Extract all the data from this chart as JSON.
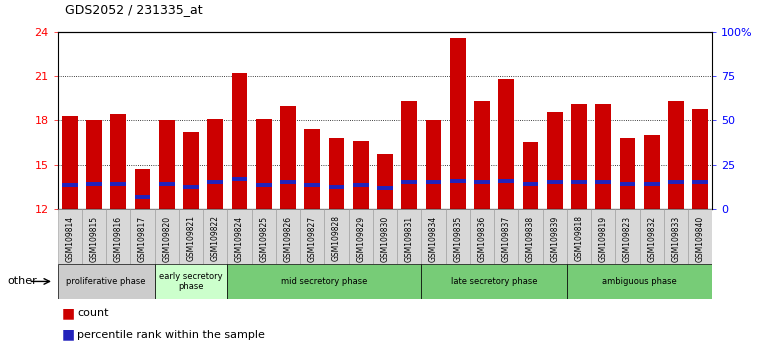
{
  "title": "GDS2052 / 231335_at",
  "samples": [
    "GSM109814",
    "GSM109815",
    "GSM109816",
    "GSM109817",
    "GSM109820",
    "GSM109821",
    "GSM109822",
    "GSM109824",
    "GSM109825",
    "GSM109826",
    "GSM109827",
    "GSM109828",
    "GSM109829",
    "GSM109830",
    "GSM109831",
    "GSM109834",
    "GSM109835",
    "GSM109836",
    "GSM109837",
    "GSM109838",
    "GSM109839",
    "GSM109818",
    "GSM109819",
    "GSM109823",
    "GSM109832",
    "GSM109833",
    "GSM109840"
  ],
  "counts": [
    18.3,
    18.0,
    18.4,
    14.7,
    18.0,
    17.2,
    18.1,
    21.2,
    18.1,
    19.0,
    17.4,
    16.8,
    16.6,
    15.7,
    19.3,
    18.0,
    23.6,
    19.3,
    20.8,
    16.5,
    18.6,
    19.1,
    19.1,
    16.8,
    17.0,
    19.3,
    18.8
  ],
  "percentile_pos": [
    13.6,
    13.7,
    13.7,
    12.8,
    13.7,
    13.5,
    13.8,
    14.0,
    13.6,
    13.8,
    13.6,
    13.5,
    13.6,
    13.4,
    13.8,
    13.8,
    13.9,
    13.8,
    13.9,
    13.7,
    13.8,
    13.8,
    13.8,
    13.7,
    13.7,
    13.8,
    13.8
  ],
  "ymin": 12,
  "ymax": 24,
  "yticks": [
    12,
    15,
    18,
    21,
    24
  ],
  "y2ticks_pct": [
    0,
    25,
    50,
    75,
    100
  ],
  "y2labels": [
    "0",
    "25",
    "50",
    "75",
    "100%"
  ],
  "bar_color": "#cc0000",
  "blue_color": "#2222bb",
  "bar_width": 0.65,
  "phase_data": [
    {
      "label": "proliferative phase",
      "start": 0,
      "end": 4,
      "color": "#cccccc"
    },
    {
      "label": "early secretory\nphase",
      "start": 4,
      "end": 7,
      "color": "#ccffcc"
    },
    {
      "label": "mid secretory phase",
      "start": 7,
      "end": 15,
      "color": "#77cc77"
    },
    {
      "label": "late secretory phase",
      "start": 15,
      "end": 21,
      "color": "#77cc77"
    },
    {
      "label": "ambiguous phase",
      "start": 21,
      "end": 27,
      "color": "#77cc77"
    }
  ],
  "other_label": "other",
  "legend_count": "count",
  "legend_pct": "percentile rank within the sample",
  "gridlines": [
    15,
    18,
    21
  ],
  "tick_bg_color": "#d8d8d8",
  "tick_border_color": "#999999"
}
